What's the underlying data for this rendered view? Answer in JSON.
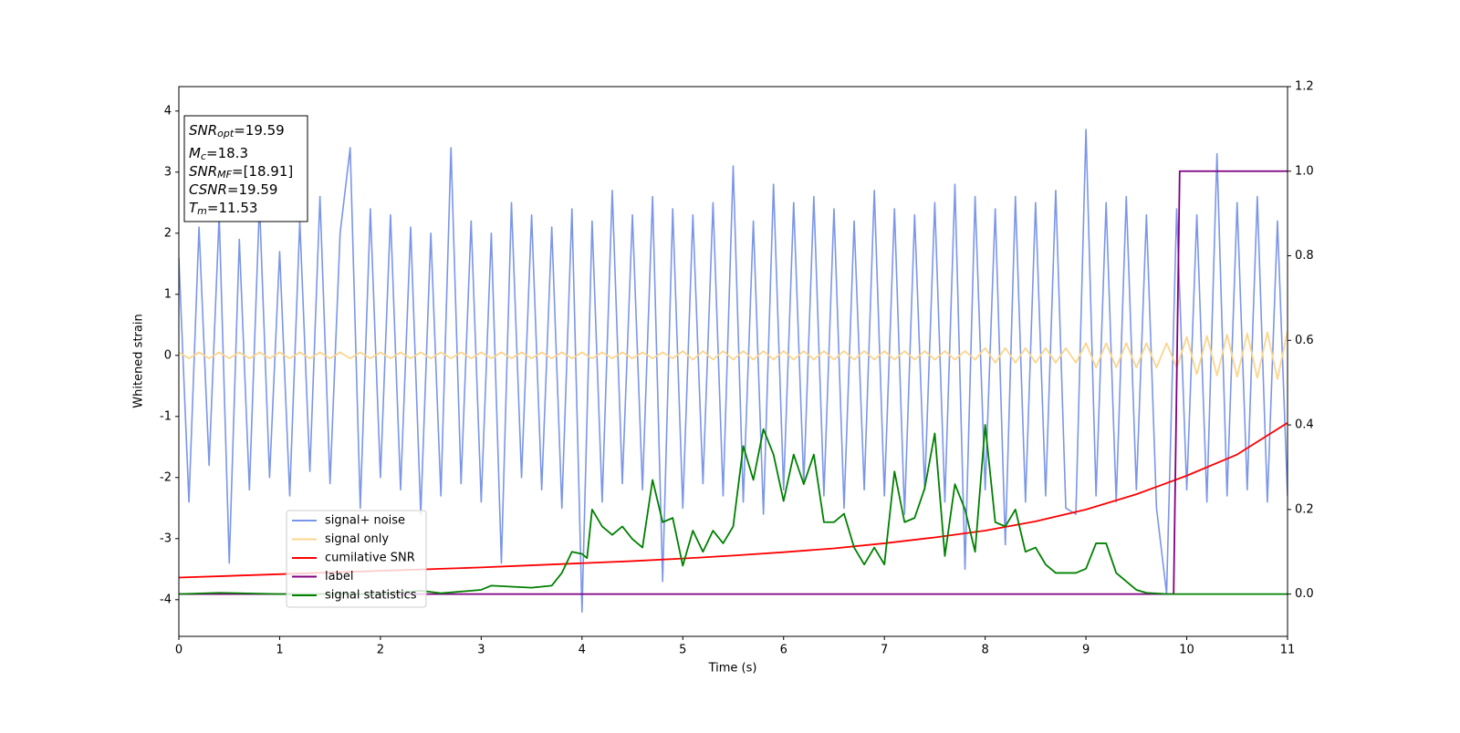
{
  "chart_data": {
    "type": "line",
    "xlabel": "Time (s)",
    "ylabel": "Whitened strain",
    "x": [
      0,
      0.1,
      0.2,
      0.3,
      0.4,
      0.5,
      0.6,
      0.7,
      0.8,
      0.9,
      1,
      1.1,
      1.2,
      1.3,
      1.4,
      1.5,
      1.6,
      1.7,
      1.8,
      1.9,
      2,
      2.1,
      2.2,
      2.3,
      2.4,
      2.5,
      2.6,
      2.7,
      2.8,
      2.9,
      3,
      3.1,
      3.2,
      3.3,
      3.4,
      3.5,
      3.6,
      3.7,
      3.8,
      3.9,
      4,
      4.1,
      4.2,
      4.3,
      4.4,
      4.5,
      4.6,
      4.7,
      4.8,
      4.9,
      5,
      5.1,
      5.2,
      5.3,
      5.4,
      5.5,
      5.6,
      5.7,
      5.8,
      5.9,
      6,
      6.1,
      6.2,
      6.3,
      6.4,
      6.5,
      6.6,
      6.7,
      6.8,
      6.9,
      7,
      7.1,
      7.2,
      7.3,
      7.4,
      7.5,
      7.6,
      7.7,
      7.8,
      7.9,
      8,
      8.1,
      8.2,
      8.3,
      8.4,
      8.5,
      8.6,
      8.7,
      8.8,
      8.9,
      9,
      9.1,
      9.2,
      9.3,
      9.4,
      9.5,
      9.6,
      9.7,
      9.8,
      9.9,
      10,
      10.1,
      10.2,
      10.3,
      10.4,
      10.5,
      10.6,
      10.7,
      10.8,
      10.9,
      11
    ],
    "series": [
      {
        "name": "signal+ noise",
        "color": "#7b96e8",
        "values": [
          1.6,
          -2.4,
          2.1,
          -1.8,
          2.3,
          -3.4,
          1.9,
          -2.2,
          2.5,
          -2.0,
          1.7,
          -2.3,
          2.2,
          -1.9,
          2.6,
          -2.1,
          2.0,
          3.4,
          -2.5,
          2.4,
          -2.0,
          2.3,
          -2.2,
          2.1,
          -2.6,
          2.0,
          -2.3,
          3.4,
          -2.1,
          2.2,
          -2.4,
          2.0,
          -3.4,
          2.5,
          -2.0,
          2.3,
          -2.2,
          2.1,
          -2.5,
          2.4,
          -4.2,
          2.2,
          -2.4,
          2.7,
          -2.1,
          2.3,
          -2.2,
          2.6,
          -3.7,
          2.4,
          -2.5,
          2.3,
          -2.1,
          2.5,
          -2.3,
          3.1,
          -2.4,
          2.2,
          -2.6,
          2.8,
          -2.2,
          2.5,
          -2.1,
          2.6,
          -2.3,
          2.4,
          -2.5,
          2.2,
          -2.2,
          2.7,
          -2.3,
          2.4,
          -2.6,
          2.3,
          -2.2,
          2.5,
          -2.4,
          2.8,
          -3.5,
          2.6,
          -2.2,
          2.4,
          -3.1,
          2.6,
          -2.4,
          2.5,
          -2.3,
          2.7,
          -2.5,
          -2.6,
          3.7,
          -2.3,
          2.5,
          -2.4,
          2.6,
          -2.2,
          2.3,
          -2.5,
          -3.9,
          2.4,
          -2.2,
          2.3,
          -2.4,
          3.3,
          -2.3,
          2.5,
          -2.2,
          2.6,
          -2.4,
          2.2,
          -2.3
        ]
      },
      {
        "name": "signal only",
        "color": "#fdd58c",
        "values": [
          0.05,
          -0.05,
          0.05,
          -0.05,
          0.05,
          -0.05,
          0.05,
          -0.05,
          0.05,
          -0.05,
          0.05,
          -0.05,
          0.05,
          -0.05,
          0.05,
          -0.05,
          0.05,
          -0.05,
          0.05,
          -0.05,
          0.05,
          -0.05,
          0.05,
          -0.05,
          0.05,
          -0.05,
          0.05,
          -0.05,
          0.05,
          -0.05,
          0.05,
          -0.05,
          0.05,
          -0.05,
          0.05,
          -0.05,
          0.05,
          -0.05,
          0.05,
          -0.05,
          0.05,
          -0.05,
          0.05,
          -0.05,
          0.05,
          -0.05,
          0.05,
          -0.05,
          0.05,
          -0.05,
          0.07,
          -0.07,
          0.07,
          -0.07,
          0.07,
          -0.07,
          0.07,
          -0.07,
          0.07,
          -0.07,
          0.07,
          -0.07,
          0.07,
          -0.07,
          0.07,
          -0.07,
          0.07,
          -0.07,
          0.07,
          -0.07,
          0.07,
          -0.07,
          0.07,
          -0.07,
          0.07,
          -0.07,
          0.07,
          -0.07,
          0.07,
          -0.07,
          0.12,
          -0.12,
          0.12,
          -0.12,
          0.12,
          -0.12,
          0.12,
          -0.12,
          0.12,
          -0.12,
          0.2,
          -0.2,
          0.2,
          -0.2,
          0.2,
          -0.2,
          0.2,
          -0.2,
          0.2,
          -0.2,
          0.3,
          -0.31,
          0.32,
          -0.33,
          0.34,
          -0.35,
          0.36,
          -0.37,
          0.38,
          -0.39,
          0.4
        ]
      },
      {
        "name": "cumilative SNR",
        "color": "#ff0000",
        "axis": "y2",
        "x": [
          0,
          0.5,
          1,
          1.5,
          2,
          2.5,
          3,
          3.5,
          4,
          4.5,
          5,
          5.5,
          6,
          6.5,
          7,
          7.5,
          8,
          8.5,
          9,
          9.5,
          10,
          10.5,
          11
        ],
        "values": [
          0.039,
          0.043,
          0.047,
          0.051,
          0.055,
          0.059,
          0.063,
          0.068,
          0.073,
          0.078,
          0.084,
          0.091,
          0.099,
          0.108,
          0.12,
          0.134,
          0.15,
          0.172,
          0.2,
          0.236,
          0.28,
          0.33,
          0.405
        ]
      },
      {
        "name": "label",
        "color": "#800080",
        "axis": "y2",
        "x": [
          0,
          9.87,
          9.93,
          11
        ],
        "values": [
          0,
          0,
          1,
          1
        ]
      },
      {
        "name": "signal statistics",
        "color": "#008000",
        "axis": "y2",
        "x": [
          0,
          0.4,
          1,
          2,
          2.4,
          2.6,
          3,
          3.1,
          3.5,
          3.7,
          3.8,
          3.9,
          4,
          4.05,
          4.1,
          4.2,
          4.3,
          4.4,
          4.5,
          4.6,
          4.7,
          4.8,
          4.9,
          5,
          5.1,
          5.2,
          5.3,
          5.4,
          5.5,
          5.6,
          5.7,
          5.8,
          5.9,
          6,
          6.1,
          6.2,
          6.3,
          6.4,
          6.5,
          6.6,
          6.7,
          6.8,
          6.9,
          7,
          7.1,
          7.2,
          7.3,
          7.4,
          7.5,
          7.6,
          7.7,
          7.8,
          7.9,
          8,
          8.1,
          8.2,
          8.3,
          8.4,
          8.5,
          8.6,
          8.7,
          8.8,
          8.9,
          9,
          9.1,
          9.2,
          9.3,
          9.4,
          9.5,
          9.6,
          9.8,
          11
        ],
        "values": [
          0,
          0.003,
          0,
          0,
          0.008,
          0.002,
          0.01,
          0.02,
          0.015,
          0.02,
          0.05,
          0.1,
          0.095,
          0.085,
          0.2,
          0.16,
          0.14,
          0.16,
          0.13,
          0.11,
          0.27,
          0.17,
          0.18,
          0.067,
          0.15,
          0.1,
          0.15,
          0.12,
          0.16,
          0.35,
          0.27,
          0.39,
          0.33,
          0.22,
          0.33,
          0.26,
          0.33,
          0.17,
          0.17,
          0.19,
          0.11,
          0.07,
          0.11,
          0.07,
          0.29,
          0.17,
          0.18,
          0.25,
          0.38,
          0.09,
          0.26,
          0.2,
          0.1,
          0.4,
          0.17,
          0.16,
          0.2,
          0.1,
          0.11,
          0.07,
          0.05,
          0.05,
          0.05,
          0.06,
          0.12,
          0.12,
          0.05,
          0.03,
          0.01,
          0.003,
          0,
          0
        ]
      }
    ],
    "xlim": [
      0,
      11
    ],
    "xticks": [
      0,
      1,
      2,
      3,
      4,
      5,
      6,
      7,
      8,
      9,
      10,
      11
    ],
    "ylim": [
      -4.6,
      4.4
    ],
    "yticks": [
      -4,
      -3,
      -2,
      -1,
      0,
      1,
      2,
      3,
      4
    ],
    "y2lim": [
      -0.1,
      1.2
    ],
    "y2ticks": [
      {
        "value": 0,
        "label": "0.0"
      },
      0.2,
      0.4,
      0.6,
      0.8,
      {
        "value": 1,
        "label": "1.0"
      },
      1.2
    ],
    "legend": "lower left",
    "annotations": [
      {
        "symbol": "SNR",
        "subscript": "opt",
        "text": "=19.59"
      },
      {
        "symbol": "M",
        "subscript": "c",
        "text": "=18.3"
      },
      {
        "symbol": "SNR",
        "subscript": "MF",
        "text": "=[18.91]"
      },
      {
        "symbol": "CSNR",
        "text": "=19.59"
      },
      {
        "symbol": "T",
        "subscript": "m",
        "text": "=11.53"
      }
    ]
  }
}
